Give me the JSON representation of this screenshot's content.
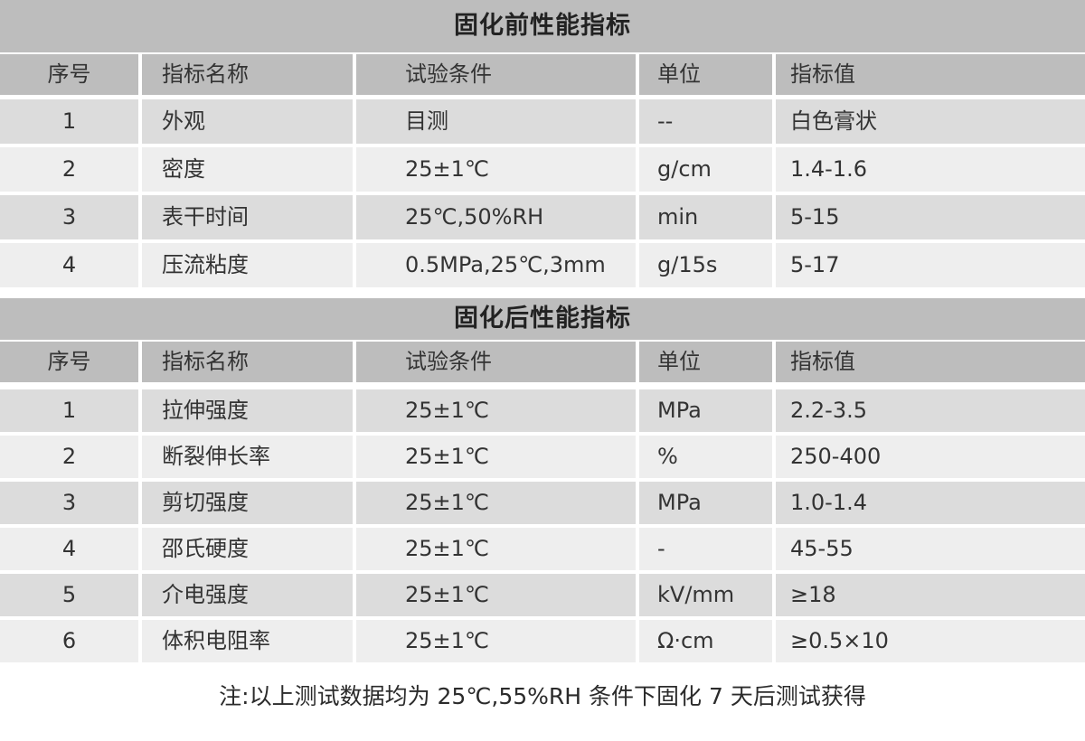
{
  "colors": {
    "band": "#bdbdbd",
    "row_dark": "#dcdcdc",
    "row_light": "#eeeeee",
    "background": "#ffffff",
    "text": "#333333"
  },
  "tables": [
    {
      "title": "固化前性能指标",
      "headers": [
        "序号",
        "指标名称",
        "试验条件",
        "单位",
        "指标值"
      ],
      "rows": [
        [
          "1",
          "外观",
          "目测",
          "--",
          "白色膏状"
        ],
        [
          "2",
          "密度",
          "25±1℃",
          "g/cm",
          "1.4-1.6"
        ],
        [
          "3",
          "表干时间",
          "25℃,50%RH",
          "min",
          "5-15"
        ],
        [
          "4",
          "压流粘度",
          "0.5MPa,25℃,3mm",
          "g/15s",
          "5-17"
        ]
      ]
    },
    {
      "title": "固化后性能指标",
      "headers": [
        "序号",
        "指标名称",
        "试验条件",
        "单位",
        "指标值"
      ],
      "rows": [
        [
          "1",
          "拉伸强度",
          "25±1℃",
          "MPa",
          "2.2-3.5"
        ],
        [
          "2",
          "断裂伸长率",
          "25±1℃",
          "%",
          "250-400"
        ],
        [
          "3",
          "剪切强度",
          "25±1℃",
          "MPa",
          "1.0-1.4"
        ],
        [
          "4",
          "邵氏硬度",
          "25±1℃",
          "-",
          "45-55"
        ],
        [
          "5",
          "介电强度",
          "25±1℃",
          "kV/mm",
          "≥18"
        ],
        [
          "6",
          "体积电阻率",
          "25±1℃",
          "Ω·cm",
          "≥0.5×10"
        ]
      ]
    }
  ],
  "note": "注:以上测试数据均为 25℃,55%RH 条件下固化 7 天后测试获得"
}
